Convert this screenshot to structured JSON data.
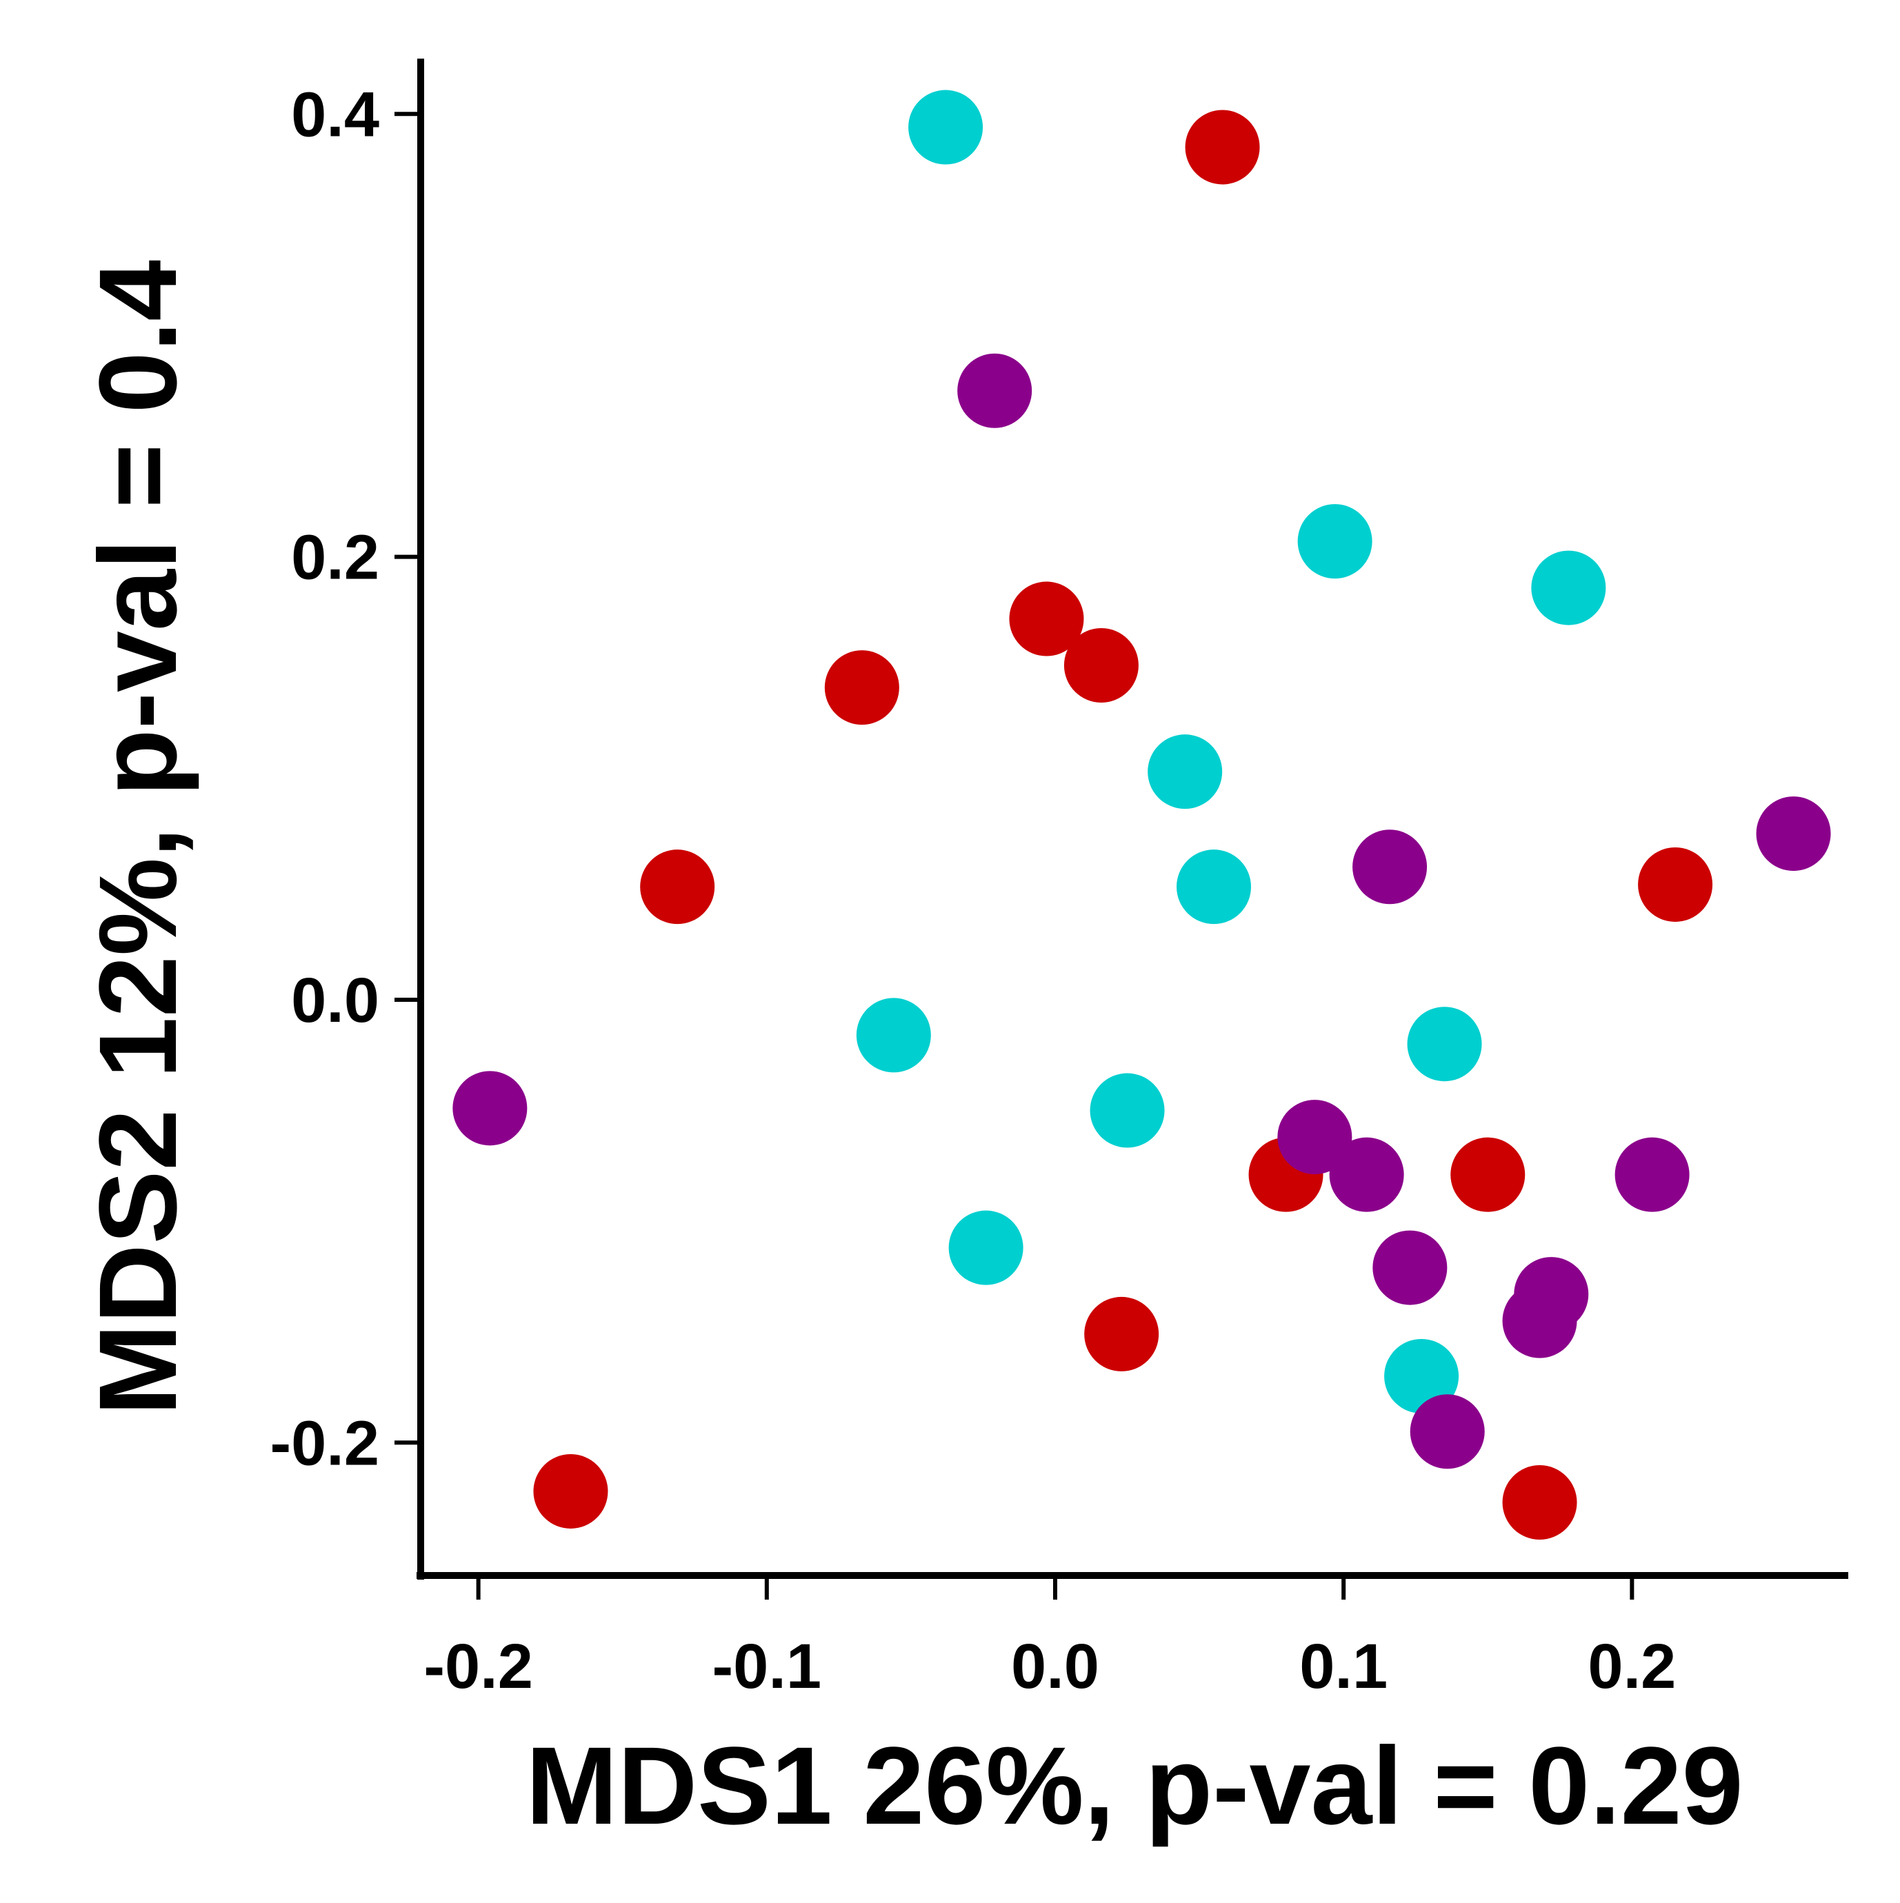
{
  "chart_data": {
    "type": "scatter",
    "title": "",
    "xlabel": "MDS1 26%, p-val = 0.29",
    "ylabel": "MDS2 12%, p-val = 0.4",
    "xlim": [
      -0.22,
      0.275
    ],
    "ylim": [
      -0.26,
      0.425
    ],
    "x_ticks": [
      "-0.2",
      "-0.1",
      "0.0",
      "0.1",
      "0.2"
    ],
    "x_tick_values": [
      -0.2,
      -0.1,
      0.0,
      0.1,
      0.2
    ],
    "y_ticks": [
      "-0.2",
      "0.0",
      "0.2",
      "0.4"
    ],
    "y_tick_values": [
      -0.2,
      0.0,
      0.2,
      0.4
    ],
    "grid": false,
    "legend": "none",
    "series": [
      {
        "color": "#00cfcf",
        "points": [
          {
            "x": -0.038,
            "y": 0.394
          },
          {
            "x": 0.097,
            "y": 0.207
          },
          {
            "x": 0.178,
            "y": 0.186
          },
          {
            "x": 0.045,
            "y": 0.103
          },
          {
            "x": 0.055,
            "y": 0.051
          },
          {
            "x": -0.056,
            "y": -0.016
          },
          {
            "x": 0.135,
            "y": -0.02
          },
          {
            "x": 0.025,
            "y": -0.05
          },
          {
            "x": -0.024,
            "y": -0.112
          },
          {
            "x": 0.127,
            "y": -0.17
          }
        ]
      },
      {
        "color": "#cc0000",
        "points": [
          {
            "x": 0.058,
            "y": 0.385
          },
          {
            "x": -0.003,
            "y": 0.172
          },
          {
            "x": 0.016,
            "y": 0.151
          },
          {
            "x": -0.067,
            "y": 0.141
          },
          {
            "x": -0.131,
            "y": 0.051
          },
          {
            "x": 0.215,
            "y": 0.052
          },
          {
            "x": 0.08,
            "y": -0.079
          },
          {
            "x": 0.15,
            "y": -0.079
          },
          {
            "x": 0.023,
            "y": -0.151
          },
          {
            "x": -0.168,
            "y": -0.222
          },
          {
            "x": 0.168,
            "y": -0.227
          }
        ]
      },
      {
        "color": "#8b008b",
        "points": [
          {
            "x": -0.021,
            "y": 0.275
          },
          {
            "x": 0.256,
            "y": 0.075
          },
          {
            "x": 0.116,
            "y": 0.06
          },
          {
            "x": -0.196,
            "y": -0.049
          },
          {
            "x": 0.09,
            "y": -0.062
          },
          {
            "x": 0.108,
            "y": -0.079
          },
          {
            "x": 0.207,
            "y": -0.079
          },
          {
            "x": 0.123,
            "y": -0.121
          },
          {
            "x": 0.172,
            "y": -0.133
          },
          {
            "x": 0.168,
            "y": -0.145
          },
          {
            "x": 0.136,
            "y": -0.195
          }
        ]
      }
    ]
  }
}
